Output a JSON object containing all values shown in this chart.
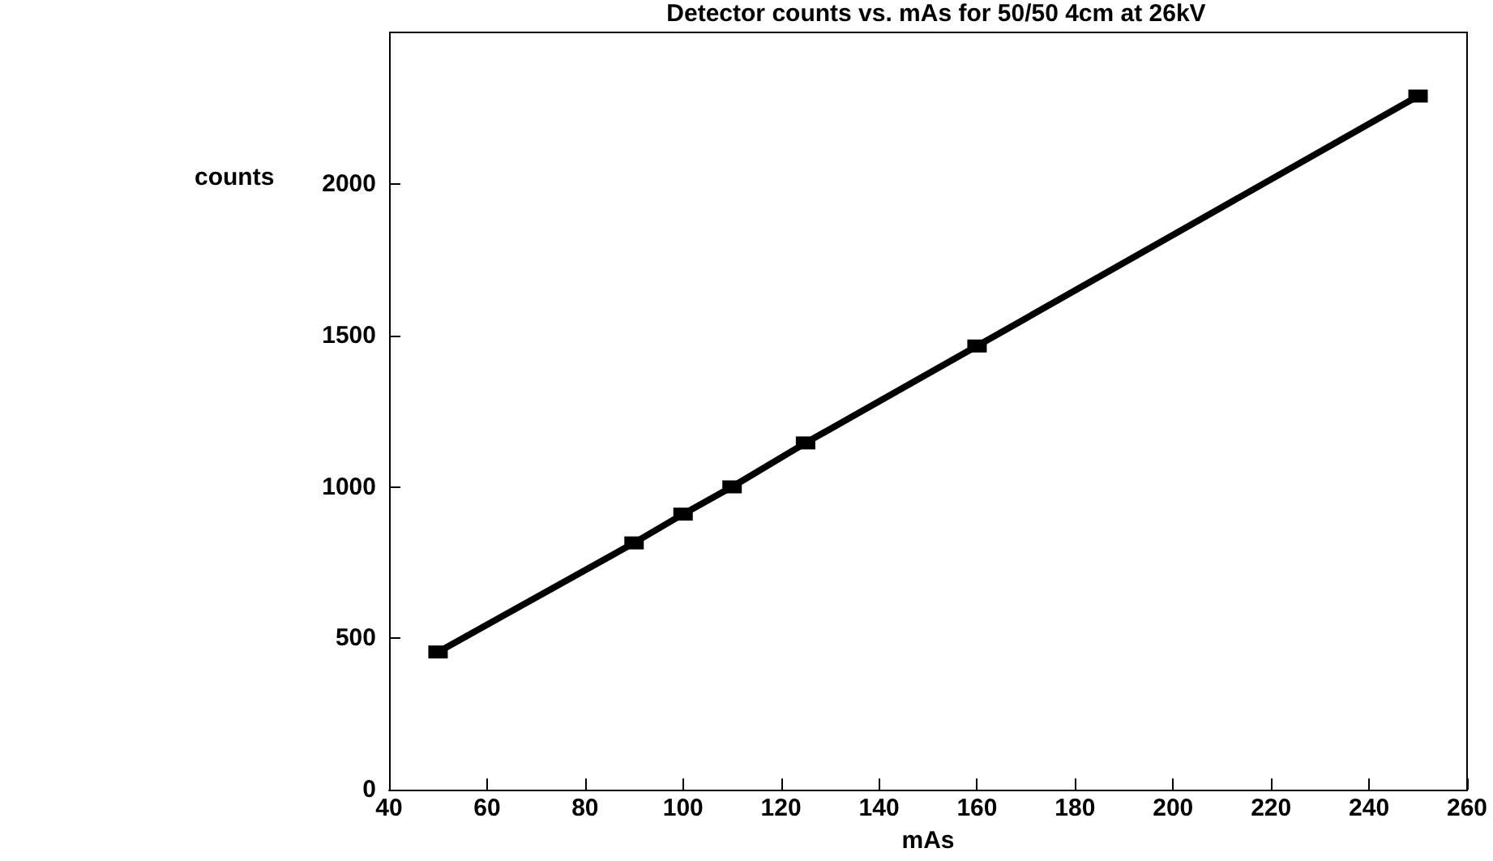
{
  "chart_data": {
    "type": "line",
    "title": "Detector counts vs. mAs for 50/50 4cm at 26kV",
    "xlabel": "mAs",
    "ylabel": "counts",
    "x": [
      50,
      90,
      100,
      110,
      125,
      160,
      250
    ],
    "series": [
      {
        "color": "#000000",
        "values": [
          455,
          815,
          910,
          1000,
          1145,
          1465,
          2290
        ]
      }
    ],
    "xlim": [
      40,
      260
    ],
    "xticks": [
      40,
      60,
      80,
      100,
      120,
      140,
      160,
      180,
      200,
      220,
      240,
      260
    ],
    "ylim": [
      0,
      2500
    ],
    "yticks": [
      0,
      500,
      1000,
      1500,
      2000
    ],
    "marker": "square",
    "line_style": "solid",
    "grid": false
  }
}
